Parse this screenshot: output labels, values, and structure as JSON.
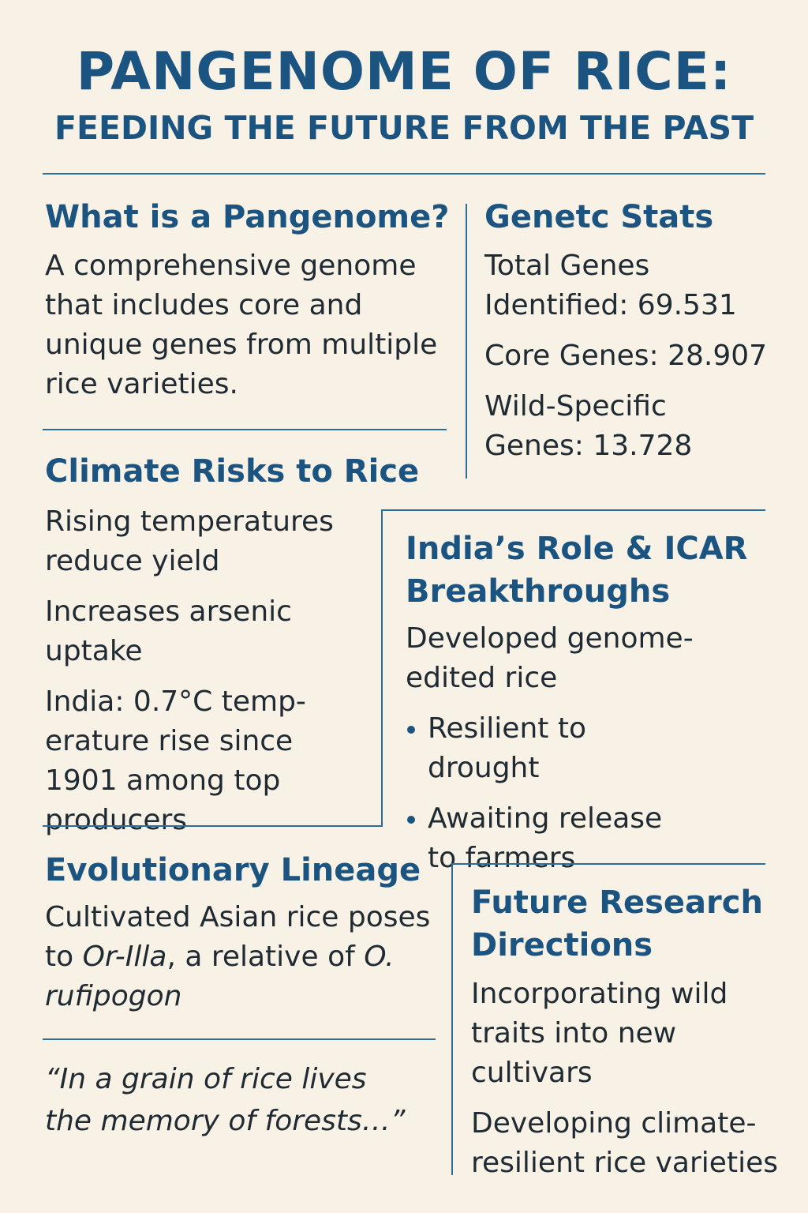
{
  "header": {
    "title": "PANGENOME OF RICE:",
    "subtitle": "FEEDING THE FUTURE FROM THE PAST"
  },
  "pangenome": {
    "heading": "What is a Pangenome?",
    "text": "A comprehensive genome that includes core and unique genes from multiple rice varieties."
  },
  "stats": {
    "heading": "Genetc Stats",
    "items": [
      "Total Genes Identified: 69.531",
      "Core Genes: 28.907",
      "Wild-Specific Genes: 13.728"
    ]
  },
  "climate": {
    "heading": "Climate Risks to Rice",
    "items": [
      "Rising temperatures reduce yield",
      "Increases arsenic uptake",
      "India: 0.7°C temp-erature rise since 1901 among top producers"
    ]
  },
  "india": {
    "heading": "India’s Role & ICAR Breakthroughs",
    "intro": "Developed genome-edited rice",
    "bullets": [
      "Resilient to drought",
      "Awaiting release to farmers"
    ]
  },
  "lineage": {
    "heading": "Evolutionary Lineage",
    "text_before": "Cultivated Asian rice poses to ",
    "species_1": "Or-Illa",
    "text_middle": ", a relative of ",
    "species_2": "O. rufipogon"
  },
  "quote": {
    "line_1": "“In a grain of rice lives",
    "line_2": "the memory of forests…”"
  },
  "future": {
    "heading": "Future Research Directions",
    "items": [
      "Incorporating wild traits into new cultivars",
      "Developing climate-resilient rice varieties"
    ]
  }
}
